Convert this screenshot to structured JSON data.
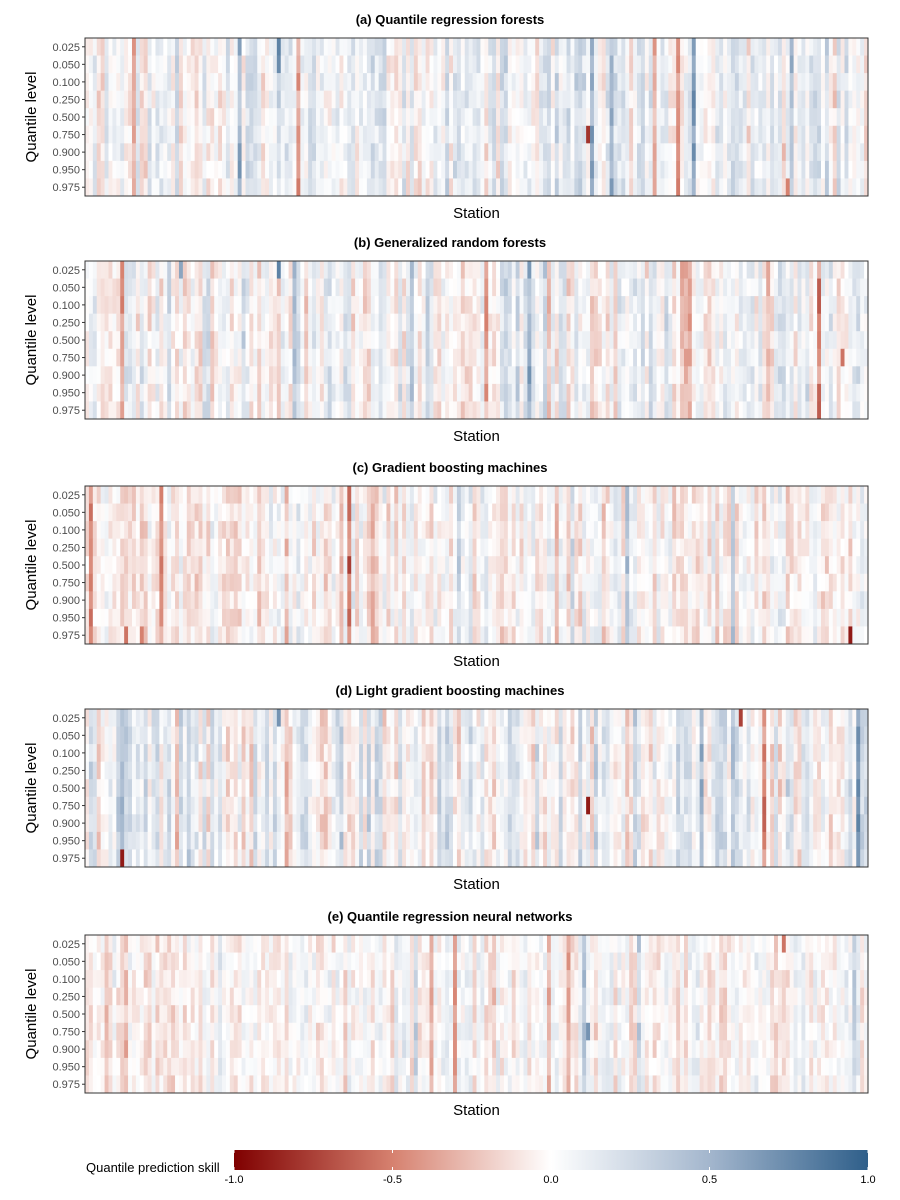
{
  "chart_data": [
    {
      "type": "heatmap",
      "title": "(a) Quantile regression forests",
      "xlabel": "Station",
      "ylabel": "Quantile level",
      "y_categories": [
        "0.025",
        "0.050",
        "0.100",
        "0.250",
        "0.500",
        "0.750",
        "0.900",
        "0.950",
        "0.975"
      ],
      "station_count": 200,
      "value_range": [
        -1.0,
        1.0
      ],
      "notable_cells": [
        {
          "station": 49,
          "quantile": "0.025",
          "value": 0.8
        },
        {
          "station": 49,
          "quantile": "0.050",
          "value": 0.75
        },
        {
          "station": 128,
          "quantile": "0.750",
          "value": -0.8
        },
        {
          "station": 179,
          "quantile": "0.975",
          "value": -0.5
        }
      ]
    },
    {
      "type": "heatmap",
      "title": "(b) Generalized random forests",
      "xlabel": "Station",
      "ylabel": "Quantile level",
      "y_categories": [
        "0.025",
        "0.050",
        "0.100",
        "0.250",
        "0.500",
        "0.750",
        "0.900",
        "0.950",
        "0.975"
      ],
      "station_count": 200,
      "value_range": [
        -1.0,
        1.0
      ],
      "notable_cells": [
        {
          "station": 49,
          "quantile": "0.025",
          "value": 0.8
        },
        {
          "station": 24,
          "quantile": "0.025",
          "value": 0.6
        },
        {
          "station": 193,
          "quantile": "0.750",
          "value": -0.55
        }
      ]
    },
    {
      "type": "heatmap",
      "title": "(c) Gradient boosting machines",
      "xlabel": "Station",
      "ylabel": "Quantile level",
      "y_categories": [
        "0.025",
        "0.050",
        "0.100",
        "0.250",
        "0.500",
        "0.750",
        "0.900",
        "0.950",
        "0.975"
      ],
      "station_count": 200,
      "value_range": [
        -1.0,
        1.0
      ],
      "notable_cells": [
        {
          "station": 195,
          "quantile": "0.975",
          "value": -0.9
        },
        {
          "station": 10,
          "quantile": "0.975",
          "value": -0.55
        },
        {
          "station": 14,
          "quantile": "0.975",
          "value": -0.5
        }
      ]
    },
    {
      "type": "heatmap",
      "title": "(d) Light gradient boosting machines",
      "xlabel": "Station",
      "ylabel": "Quantile level",
      "y_categories": [
        "0.025",
        "0.050",
        "0.100",
        "0.250",
        "0.500",
        "0.750",
        "0.900",
        "0.950",
        "0.975"
      ],
      "station_count": 200,
      "value_range": [
        -1.0,
        1.0
      ],
      "notable_cells": [
        {
          "station": 128,
          "quantile": "0.750",
          "value": -0.9
        },
        {
          "station": 9,
          "quantile": "0.975",
          "value": -0.9
        },
        {
          "station": 167,
          "quantile": "0.025",
          "value": -0.75
        },
        {
          "station": 49,
          "quantile": "0.025",
          "value": 0.7
        }
      ]
    },
    {
      "type": "heatmap",
      "title": "(e) Quantile regression neural networks",
      "xlabel": "Station",
      "ylabel": "Quantile level",
      "y_categories": [
        "0.025",
        "0.050",
        "0.100",
        "0.250",
        "0.500",
        "0.750",
        "0.900",
        "0.950",
        "0.975"
      ],
      "station_count": 200,
      "value_range": [
        -1.0,
        1.0
      ],
      "notable_cells": [
        {
          "station": 128,
          "quantile": "0.750",
          "value": 0.7
        },
        {
          "station": 141,
          "quantile": "0.025",
          "value": 0.45
        },
        {
          "station": 178,
          "quantile": "0.025",
          "value": -0.55
        }
      ]
    }
  ],
  "legend": {
    "title": "Quantile prediction skill",
    "ticks": [
      "-1.0",
      "-0.5",
      "0.0",
      "0.5",
      "1.0"
    ],
    "tick_values": [
      -1.0,
      -0.5,
      0.0,
      0.5,
      1.0
    ],
    "colors": {
      "low": "#7f0000",
      "mid": "#ffffff",
      "high": "#2f5f8a"
    }
  }
}
